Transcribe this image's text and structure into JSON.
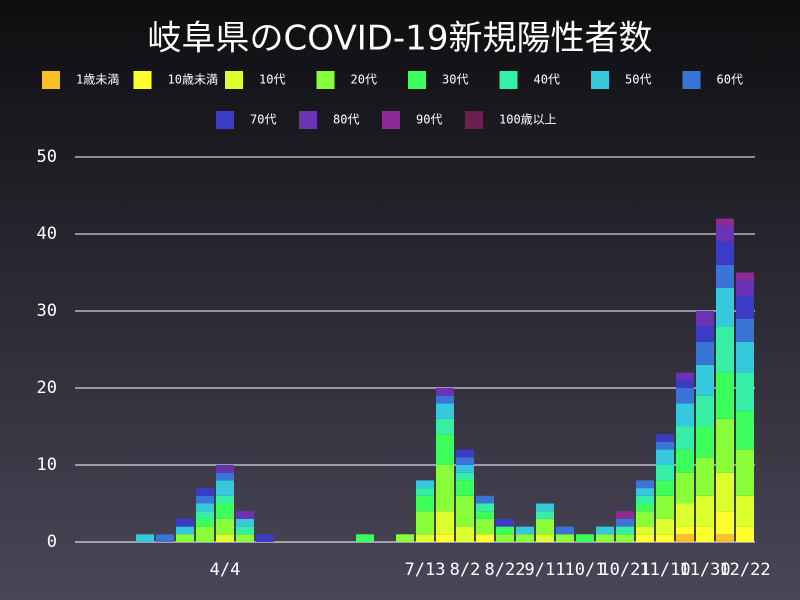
{
  "chart_data": {
    "type": "bar",
    "stacked": true,
    "title": "岐阜県のCOVID-19新規陽性者数",
    "categories": [
      null,
      null,
      null,
      null,
      null,
      null,
      null,
      "4/4",
      null,
      null,
      null,
      null,
      null,
      null,
      null,
      null,
      null,
      "7/13",
      null,
      "8/2",
      null,
      "8/22",
      null,
      "9/11",
      null,
      "10/1",
      null,
      "10/21",
      null,
      "11/10",
      null,
      "11/30",
      null,
      "12/22"
    ],
    "series": [
      {
        "name": "1歳未満",
        "color": "#ffbf2a",
        "values": [
          0,
          0,
          0,
          0,
          0,
          0,
          0,
          0,
          0,
          0,
          0,
          0,
          0,
          0,
          0,
          0,
          0,
          0,
          0,
          0,
          0,
          0,
          0,
          0,
          0,
          0,
          0,
          0,
          0,
          0,
          1,
          0,
          1,
          0
        ]
      },
      {
        "name": "10歳未満",
        "color": "#ffff2e",
        "values": [
          0,
          0,
          0,
          0,
          0,
          0,
          0,
          0,
          0,
          0,
          0,
          0,
          0,
          0,
          0,
          0,
          0,
          0,
          1,
          0,
          1,
          0,
          0,
          0,
          0,
          0,
          0,
          0,
          1,
          1,
          1,
          2,
          3,
          2
        ]
      },
      {
        "name": "10代",
        "color": "#dcff2e",
        "values": [
          0,
          0,
          0,
          0,
          0,
          0,
          0,
          1,
          0,
          0,
          0,
          0,
          0,
          0,
          0,
          0,
          0,
          1,
          3,
          2,
          0,
          0,
          0,
          1,
          0,
          0,
          0,
          0,
          1,
          2,
          3,
          4,
          5,
          4
        ]
      },
      {
        "name": "20代",
        "color": "#88ff38",
        "values": [
          0,
          0,
          0,
          0,
          0,
          1,
          2,
          2,
          1,
          0,
          0,
          0,
          0,
          0,
          0,
          0,
          1,
          3,
          6,
          4,
          2,
          1,
          1,
          2,
          1,
          0,
          1,
          1,
          2,
          3,
          4,
          5,
          7,
          6
        ]
      },
      {
        "name": "30代",
        "color": "#3cff5c",
        "values": [
          0,
          0,
          0,
          0,
          0,
          0,
          1,
          2,
          0,
          0,
          0,
          0,
          0,
          0,
          1,
          0,
          0,
          2,
          4,
          2,
          1,
          1,
          0,
          0,
          0,
          1,
          0,
          0,
          1,
          2,
          3,
          4,
          6,
          5
        ]
      },
      {
        "name": "40代",
        "color": "#36eea6",
        "values": [
          0,
          0,
          0,
          0,
          0,
          0,
          1,
          1,
          1,
          0,
          0,
          0,
          0,
          0,
          0,
          0,
          0,
          1,
          2,
          1,
          1,
          0,
          0,
          1,
          0,
          0,
          0,
          1,
          1,
          2,
          3,
          4,
          6,
          5
        ]
      },
      {
        "name": "50代",
        "color": "#36c8dc",
        "values": [
          0,
          0,
          0,
          1,
          0,
          1,
          1,
          2,
          1,
          0,
          0,
          0,
          0,
          0,
          0,
          0,
          0,
          1,
          2,
          1,
          0,
          0,
          1,
          1,
          0,
          0,
          1,
          0,
          1,
          2,
          3,
          4,
          5,
          4
        ]
      },
      {
        "name": "60代",
        "color": "#3a74d6",
        "values": [
          0,
          0,
          0,
          0,
          1,
          0,
          1,
          1,
          0,
          0,
          0,
          0,
          0,
          0,
          0,
          0,
          0,
          0,
          1,
          1,
          1,
          0,
          0,
          0,
          1,
          0,
          0,
          1,
          1,
          1,
          2,
          3,
          3,
          3
        ]
      },
      {
        "name": "70代",
        "color": "#3b3cc6",
        "values": [
          0,
          0,
          0,
          0,
          0,
          1,
          1,
          0,
          0,
          1,
          0,
          0,
          0,
          0,
          0,
          0,
          0,
          0,
          0,
          1,
          0,
          1,
          0,
          0,
          0,
          0,
          0,
          0,
          0,
          1,
          1,
          2,
          3,
          3
        ]
      },
      {
        "name": "80代",
        "color": "#6a33b6",
        "values": [
          0,
          0,
          0,
          0,
          0,
          0,
          0,
          1,
          1,
          0,
          0,
          0,
          0,
          0,
          0,
          0,
          0,
          0,
          1,
          0,
          0,
          0,
          0,
          0,
          0,
          0,
          0,
          0,
          0,
          0,
          1,
          2,
          2,
          2
        ]
      },
      {
        "name": "90代",
        "color": "#8c2a96",
        "values": [
          0,
          0,
          0,
          0,
          0,
          0,
          0,
          0,
          0,
          0,
          0,
          0,
          0,
          0,
          0,
          0,
          0,
          0,
          0,
          0,
          0,
          0,
          0,
          0,
          0,
          0,
          0,
          1,
          0,
          0,
          0,
          0,
          1,
          1
        ]
      },
      {
        "name": "100歳以上",
        "color": "#6c2050",
        "values": [
          0,
          0,
          0,
          0,
          0,
          0,
          0,
          0,
          0,
          0,
          0,
          0,
          0,
          0,
          0,
          0,
          0,
          0,
          0,
          0,
          0,
          0,
          0,
          0,
          0,
          0,
          0,
          0,
          0,
          0,
          0,
          0,
          0,
          0
        ]
      }
    ],
    "ylim": [
      0,
      50
    ],
    "yticks": [
      0,
      10,
      20,
      30,
      40,
      50
    ],
    "grid": true,
    "legend": "top"
  }
}
